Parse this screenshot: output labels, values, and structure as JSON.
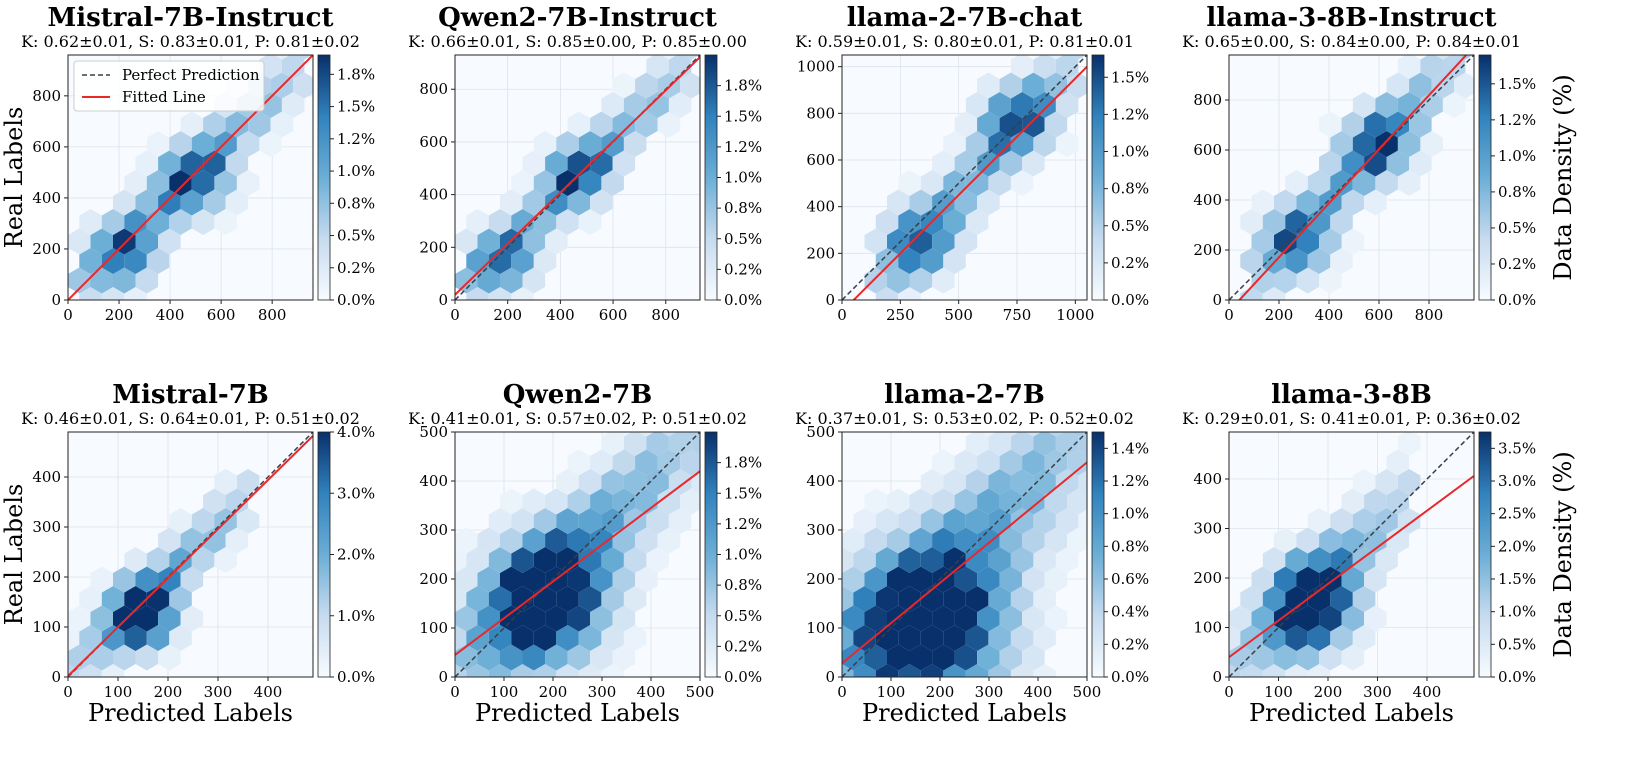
{
  "chart_data": [
    {
      "type": "hexbin",
      "title": "Mistral-7B-Instruct",
      "subtitle": "K: 0.62±0.01, S: 0.83±0.01, P: 0.81±0.02",
      "xlabel": "",
      "ylabel": "Real Labels",
      "xlim": [
        0,
        960
      ],
      "ylim": [
        0,
        960
      ],
      "xticks": [
        0,
        200,
        400,
        600,
        800
      ],
      "yticks": [
        0,
        200,
        400,
        600,
        800
      ],
      "fit": {
        "slope": 1.0,
        "intercept": 0
      },
      "density": {
        "a": 1.0,
        "b": 0,
        "spread": 95,
        "lo": 80,
        "hi": 880,
        "centers": [
          [
            220,
            180
          ],
          [
            500,
            470
          ]
        ]
      },
      "colorbar": {
        "label": "",
        "max": 1.9,
        "ticks": [
          "0.0%",
          "0.2%",
          "0.5%",
          "0.8%",
          "1.0%",
          "1.2%",
          "1.5%",
          "1.8%"
        ],
        "tick_values": [
          0,
          0.25,
          0.5,
          0.75,
          1.0,
          1.25,
          1.5,
          1.75
        ]
      },
      "legend": {
        "items": [
          "Perfect Prediction",
          "Fitted Line"
        ],
        "position": "upper-left"
      }
    },
    {
      "type": "hexbin",
      "title": "Qwen2-7B-Instruct",
      "subtitle": "K: 0.66±0.01, S: 0.85±0.00, P: 0.85±0.00",
      "xlabel": "",
      "ylabel": "",
      "xlim": [
        0,
        930
      ],
      "ylim": [
        0,
        930
      ],
      "xticks": [
        0,
        200,
        400,
        600,
        800
      ],
      "yticks": [
        0,
        200,
        400,
        600,
        800
      ],
      "fit": {
        "slope": 0.97,
        "intercept": 20
      },
      "density": {
        "a": 1.0,
        "b": 0,
        "spread": 85,
        "lo": 80,
        "hi": 860,
        "centers": [
          [
            180,
            150
          ],
          [
            470,
            480
          ]
        ]
      },
      "colorbar": {
        "label": "",
        "max": 2.0,
        "ticks": [
          "0.0%",
          "0.2%",
          "0.5%",
          "0.8%",
          "1.0%",
          "1.2%",
          "1.5%",
          "1.8%"
        ],
        "tick_values": [
          0,
          0.25,
          0.5,
          0.75,
          1.0,
          1.25,
          1.5,
          1.75
        ]
      }
    },
    {
      "type": "hexbin",
      "title": "llama-2-7B-chat",
      "subtitle": "K: 0.59±0.01, S: 0.80±0.01, P: 0.81±0.01",
      "xlabel": "",
      "ylabel": "",
      "xlim": [
        0,
        1050
      ],
      "ylim": [
        0,
        1050
      ],
      "xticks": [
        0,
        250,
        500,
        750,
        1000
      ],
      "yticks": [
        0,
        200,
        400,
        600,
        800,
        1000
      ],
      "fit": {
        "slope": 1.0,
        "intercept": -50
      },
      "density": {
        "a": 1.1,
        "b": -100,
        "spread": 110,
        "lo": 200,
        "hi": 960,
        "centers": [
          [
            330,
            250
          ],
          [
            750,
            780
          ]
        ]
      },
      "colorbar": {
        "label": "",
        "max": 1.65,
        "ticks": [
          "0.0%",
          "0.2%",
          "0.5%",
          "0.8%",
          "1.0%",
          "1.2%",
          "1.5%"
        ],
        "tick_values": [
          0,
          0.25,
          0.5,
          0.75,
          1.0,
          1.25,
          1.5
        ]
      }
    },
    {
      "type": "hexbin",
      "title": "llama-3-8B-Instruct",
      "subtitle": "K: 0.65±0.00, S: 0.84±0.00, P: 0.84±0.01",
      "xlabel": "",
      "ylabel": "",
      "xlim": [
        0,
        980
      ],
      "ylim": [
        0,
        980
      ],
      "xticks": [
        0,
        200,
        400,
        600,
        800
      ],
      "yticks": [
        0,
        200,
        400,
        600,
        800
      ],
      "fit": {
        "slope": 1.08,
        "intercept": -45
      },
      "density": {
        "a": 1.1,
        "b": -40,
        "spread": 100,
        "lo": 150,
        "hi": 880,
        "centers": [
          [
            270,
            240
          ],
          [
            600,
            620
          ]
        ]
      },
      "colorbar": {
        "label": "Data Density (%)",
        "max": 1.7,
        "ticks": [
          "0.0%",
          "0.2%",
          "0.5%",
          "0.8%",
          "1.0%",
          "1.2%",
          "1.5%"
        ],
        "tick_values": [
          0,
          0.25,
          0.5,
          0.75,
          1.0,
          1.25,
          1.5
        ]
      }
    },
    {
      "type": "hexbin",
      "title": "Mistral-7B",
      "subtitle": "K: 0.46±0.01, S: 0.64±0.01, P: 0.51±0.02",
      "xlabel": "Predicted Labels",
      "ylabel": "Real Labels",
      "xlim": [
        0,
        490
      ],
      "ylim": [
        0,
        490
      ],
      "xticks": [
        0,
        100,
        200,
        300,
        400
      ],
      "yticks": [
        0,
        100,
        200,
        300,
        400
      ],
      "fit": {
        "slope": 0.98,
        "intercept": 2
      },
      "density": {
        "a": 1.0,
        "b": 0,
        "spread": 45,
        "lo": 30,
        "hi": 340,
        "centers": [
          [
            155,
            140
          ],
          [
            140,
            110
          ]
        ]
      },
      "colorbar": {
        "label": "",
        "max": 4.0,
        "ticks": [
          "0.0%",
          "1.0%",
          "2.0%",
          "3.0%",
          "4.0%"
        ],
        "tick_values": [
          0,
          1,
          2,
          3,
          4
        ]
      }
    },
    {
      "type": "hexbin",
      "title": "Qwen2-7B",
      "subtitle": "K: 0.41±0.01, S: 0.57±0.02, P: 0.51±0.02",
      "xlabel": "Predicted Labels",
      "ylabel": "",
      "xlim": [
        0,
        500
      ],
      "ylim": [
        0,
        500
      ],
      "xticks": [
        0,
        100,
        200,
        300,
        400,
        500
      ],
      "yticks": [
        0,
        100,
        200,
        300,
        400,
        500
      ],
      "fit": {
        "slope": 0.75,
        "intercept": 45
      },
      "density": {
        "a": 1.0,
        "b": 0,
        "spread": 85,
        "lo": 20,
        "hi": 480,
        "centers": [
          [
            200,
            190
          ],
          [
            170,
            120
          ]
        ]
      },
      "colorbar": {
        "label": "",
        "max": 2.0,
        "ticks": [
          "0.0%",
          "0.2%",
          "0.5%",
          "0.8%",
          "1.0%",
          "1.2%",
          "1.5%",
          "1.8%"
        ],
        "tick_values": [
          0,
          0.25,
          0.5,
          0.75,
          1.0,
          1.25,
          1.5,
          1.75
        ]
      }
    },
    {
      "type": "hexbin",
      "title": "llama-2-7B",
      "subtitle": "K: 0.37±0.01, S: 0.53±0.02, P: 0.52±0.02",
      "xlabel": "Predicted Labels",
      "ylabel": "",
      "xlim": [
        0,
        500
      ],
      "ylim": [
        0,
        500
      ],
      "xticks": [
        0,
        100,
        200,
        300,
        400,
        500
      ],
      "yticks": [
        0,
        100,
        200,
        300,
        400,
        500
      ],
      "fit": {
        "slope": 0.82,
        "intercept": 28
      },
      "density": {
        "a": 1.0,
        "b": 0,
        "spread": 110,
        "lo": 20,
        "hi": 490,
        "centers": [
          [
            170,
            110
          ],
          [
            180,
            80
          ]
        ]
      },
      "colorbar": {
        "label": "",
        "max": 1.5,
        "ticks": [
          "0.0%",
          "0.2%",
          "0.4%",
          "0.6%",
          "0.8%",
          "1.0%",
          "1.2%",
          "1.4%"
        ],
        "tick_values": [
          0,
          0.2,
          0.4,
          0.6,
          0.8,
          1.0,
          1.2,
          1.4
        ]
      }
    },
    {
      "type": "hexbin",
      "title": "llama-3-8B",
      "subtitle": "K: 0.29±0.01, S: 0.41±0.01, P: 0.36±0.02",
      "xlabel": "Predicted Labels",
      "ylabel": "",
      "xlim": [
        0,
        495
      ],
      "ylim": [
        0,
        495
      ],
      "xticks": [
        0,
        100,
        200,
        300,
        400
      ],
      "yticks": [
        0,
        100,
        200,
        300,
        400
      ],
      "fit": {
        "slope": 0.74,
        "intercept": 40
      },
      "density": {
        "a": 1.0,
        "b": 0,
        "spread": 60,
        "lo": 40,
        "hi": 330,
        "centers": [
          [
            170,
            170
          ],
          [
            160,
            120
          ]
        ]
      },
      "colorbar": {
        "label": "Data Density (%)",
        "max": 3.75,
        "ticks": [
          "0.0%",
          "0.5%",
          "1.0%",
          "1.5%",
          "2.0%",
          "2.5%",
          "3.0%",
          "3.5%"
        ],
        "tick_values": [
          0,
          0.5,
          1,
          1.5,
          2,
          2.5,
          3,
          3.5
        ]
      }
    }
  ]
}
